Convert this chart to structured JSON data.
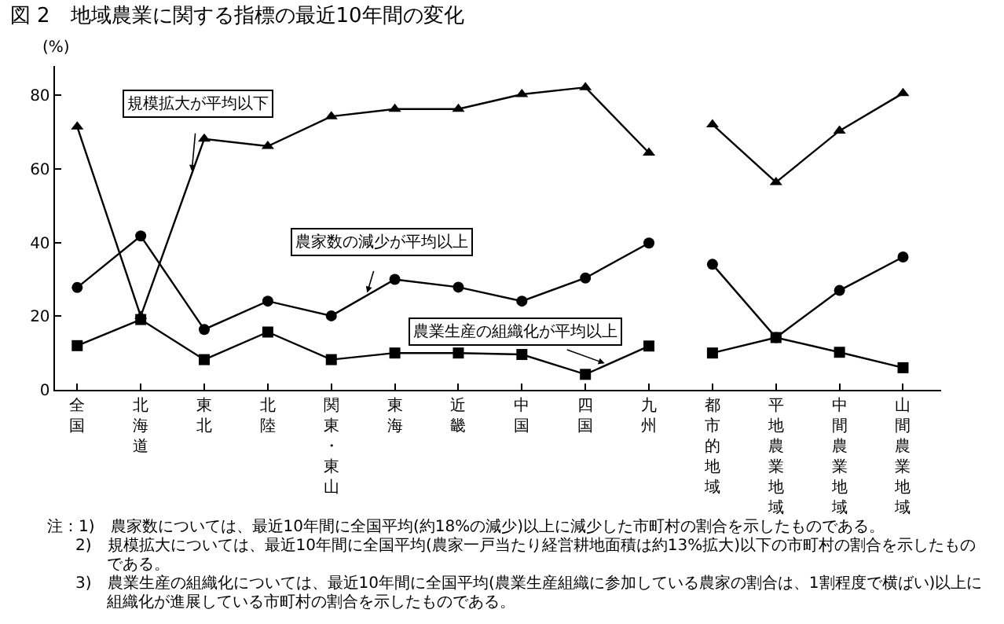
{
  "chart_data": {
    "type": "line",
    "title": "図 2　地域農業に関する指標の最近10年間の変化",
    "ylabel": "(%)",
    "categories": [
      "全国",
      "北海道",
      "東北",
      "北陸",
      "関東・東山",
      "東海",
      "近畿",
      "中国",
      "四国",
      "九州",
      "都市的地域",
      "平地農業地域",
      "中間農業地域",
      "山間農業地域"
    ],
    "series": [
      {
        "name": "規模拡大が平均以下",
        "color": "#000000",
        "marker": "triangle",
        "values": [
          71.5,
          20,
          68.2,
          66.2,
          74.3,
          76.3,
          76.3,
          80.3,
          82.2,
          64.4,
          null,
          null,
          null,
          null
        ]
      },
      {
        "name": "農家数の減少が平均以上",
        "color": "#000000",
        "marker": "circle",
        "values": [
          27.8,
          41.8,
          16.4,
          24.1,
          20.1,
          30,
          27.9,
          24.1,
          30.4,
          39.9,
          null,
          null,
          null,
          null
        ]
      },
      {
        "name": "農業生産の組織化が平均以上",
        "color": "#000000",
        "marker": "square",
        "values": [
          12,
          19.1,
          8.2,
          15.7,
          8.2,
          10,
          10,
          9.6,
          4.2,
          11.9,
          null,
          null,
          null,
          null
        ]
      },
      {
        "color": "#000000",
        "marker": "triangle",
        "values": [
          null,
          null,
          null,
          null,
          null,
          null,
          null,
          null,
          null,
          null,
          72.1,
          56.4,
          70.4,
          80.6
        ]
      },
      {
        "color": "#000000",
        "marker": "circle",
        "values": [
          null,
          null,
          null,
          null,
          null,
          null,
          null,
          null,
          null,
          null,
          34.1,
          14.2,
          27,
          36.1
        ]
      },
      {
        "color": "#000000",
        "marker": "square",
        "values": [
          null,
          null,
          null,
          null,
          null,
          null,
          null,
          null,
          null,
          null,
          10,
          14.2,
          10.2,
          6
        ]
      }
    ],
    "ylim": [
      0,
      88
    ],
    "yticks": [
      0,
      20,
      40,
      60,
      80
    ],
    "grid": false,
    "legend": false,
    "annotations": [
      "注：1)　農家数については、最近10年間に全国平均(約18%の減少)以上に減少した市町村の割合を示したものである。",
      "2)　規模拡大については、最近10年間に全国平均(農家一戸当たり経営耕地面積は約13%拡大)以下の市町村の割合を示したものである。",
      "3)　農業生産の組織化については、最近10年間に全国平均(農業生産組織に参加している農家の割合は、1割程度で横ばい)以上に組織化が進展している市町村の割合を示したものである。"
    ]
  }
}
